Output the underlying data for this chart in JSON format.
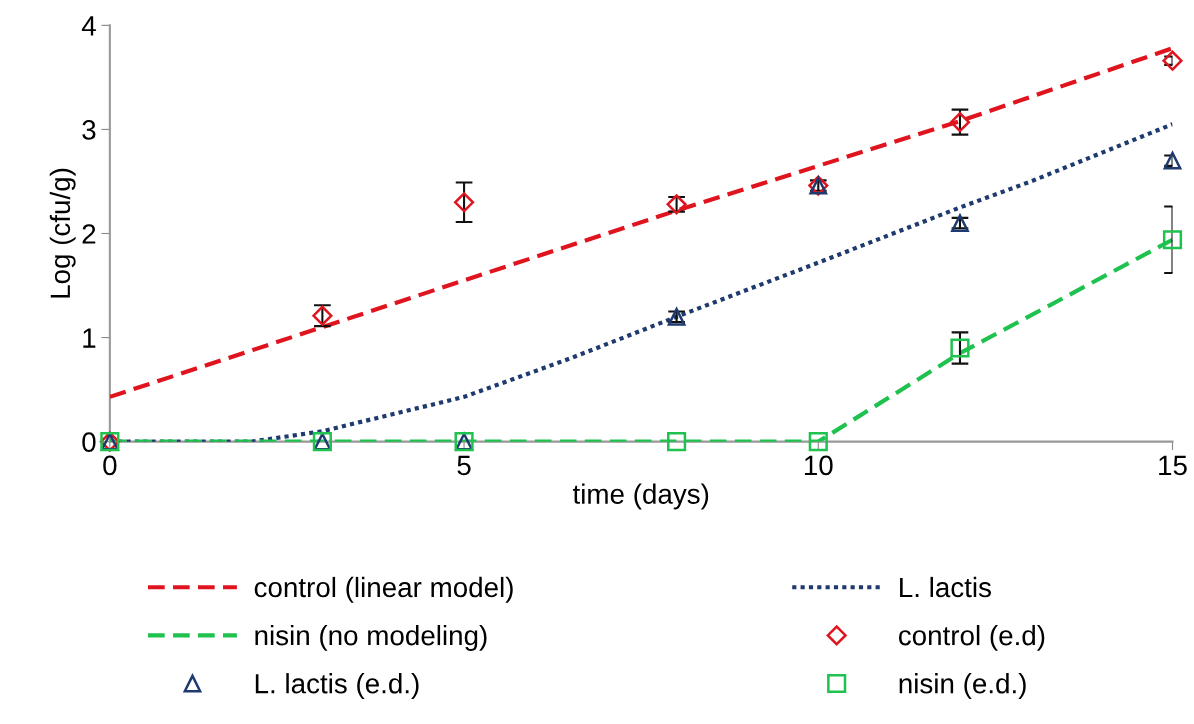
{
  "chart_data": {
    "type": "line",
    "xlabel": "time (days)",
    "ylabel": "Log (cfu/g)",
    "xlim": [
      0,
      15
    ],
    "ylim": [
      0,
      4
    ],
    "xticks": [
      0,
      5,
      10,
      15
    ],
    "yticks": [
      0,
      1,
      2,
      3,
      4
    ],
    "grid": false,
    "legend": "bottom",
    "series": [
      {
        "name": "control (linear model)",
        "color": "#e0141e",
        "line_style": "dashed",
        "marker": "none",
        "x": [
          0,
          3,
          5,
          8,
          10,
          12,
          15
        ],
        "values": [
          0.43,
          1.1,
          1.55,
          2.22,
          2.65,
          3.08,
          3.78
        ]
      },
      {
        "name": "L. lactis",
        "color": "#1f3a6e",
        "line_style": "dotted",
        "marker": "none",
        "x": [
          0,
          2,
          3,
          5,
          6.5,
          8,
          10,
          12,
          13,
          15
        ],
        "values": [
          0,
          0,
          0.1,
          0.43,
          0.8,
          1.2,
          1.72,
          2.25,
          2.5,
          3.05
        ]
      },
      {
        "name": "nisin (no modeling)",
        "color": "#1fc24f",
        "line_style": "dashed",
        "marker": "none",
        "x": [
          0,
          10,
          12,
          15
        ],
        "values": [
          0,
          0,
          0.85,
          1.94
        ]
      },
      {
        "name": "control (e.d)",
        "type": "scatter",
        "color": "#e0141e",
        "marker": "diamond",
        "x": [
          0,
          3,
          5,
          8,
          10,
          12,
          15
        ],
        "values": [
          0,
          1.21,
          2.3,
          2.28,
          2.46,
          3.07,
          3.66
        ],
        "errors": [
          null,
          0.1,
          0.19,
          0.07,
          0.05,
          0.12,
          0.04
        ]
      },
      {
        "name": "L. lactis (e.d.)",
        "type": "scatter",
        "color": "#1f3a6e",
        "marker": "triangle",
        "x": [
          0,
          3,
          5,
          8,
          10,
          12,
          15
        ],
        "values": [
          0,
          0,
          0,
          1.2,
          2.46,
          2.1,
          2.7
        ],
        "errors": [
          null,
          null,
          null,
          0.05,
          null,
          0.05,
          0.05
        ]
      },
      {
        "name": "nisin (e.d.)",
        "type": "scatter",
        "color": "#1fc24f",
        "marker": "square",
        "x": [
          0,
          3,
          5,
          8,
          10,
          12,
          15
        ],
        "values": [
          0,
          0,
          0,
          0,
          0,
          0.9,
          1.94
        ],
        "errors": [
          null,
          null,
          null,
          null,
          null,
          0.15,
          0.32
        ]
      }
    ]
  }
}
